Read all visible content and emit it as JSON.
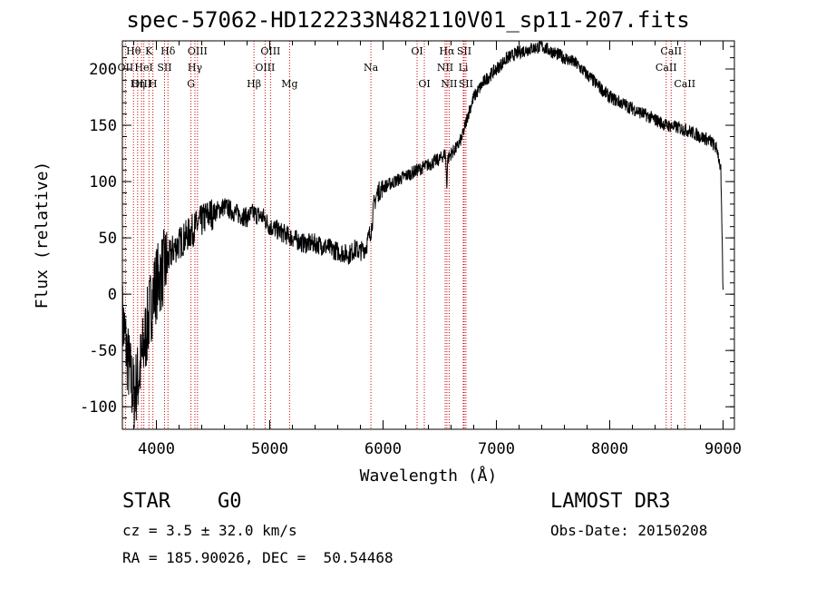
{
  "title": "spec-57062-HD122233N482110V01_sp11-207.fits",
  "info": {
    "object_type": "STAR",
    "subclass": "G0",
    "survey": "LAMOST DR3",
    "cz": "cz = 3.5 ± 32.0 km/s",
    "obs_date": "Obs-Date: 20150208",
    "coords": "RA = 185.90026, DEC =  50.54468"
  },
  "colors": {
    "line": "#000000",
    "marker": "#cc0000",
    "axis": "#000000",
    "background": "#ffffff"
  },
  "chart_data": {
    "type": "line",
    "title": "spec-57062-HD122233N482110V01_sp11-207.fits",
    "xlabel": "Wavelength (Å)",
    "ylabel": "Flux (relative)",
    "xlim": [
      3700,
      9100
    ],
    "ylim": [
      -120,
      225
    ],
    "xticks": [
      4000,
      5000,
      6000,
      7000,
      8000,
      9000
    ],
    "yticks": [
      -100,
      -50,
      0,
      50,
      100,
      150,
      200
    ],
    "series": [
      {
        "name": "flux",
        "x": [
          3700,
          3750,
          3800,
          3850,
          3900,
          3950,
          4000,
          4050,
          4100,
          4150,
          4200,
          4250,
          4300,
          4350,
          4400,
          4450,
          4500,
          4550,
          4600,
          4650,
          4700,
          4750,
          4800,
          4850,
          4900,
          4950,
          5000,
          5050,
          5100,
          5200,
          5300,
          5400,
          5500,
          5600,
          5700,
          5750,
          5800,
          5850,
          5900,
          5920,
          5950,
          6000,
          6100,
          6200,
          6300,
          6400,
          6500,
          6550,
          6563,
          6570,
          6600,
          6650,
          6700,
          6750,
          6800,
          6900,
          7000,
          7100,
          7200,
          7300,
          7400,
          7500,
          7600,
          7700,
          7800,
          7900,
          8000,
          8100,
          8200,
          8300,
          8400,
          8500,
          8600,
          8700,
          8800,
          8850,
          8900,
          8950,
          8980,
          9000
        ],
        "y": [
          -20,
          -60,
          -90,
          -70,
          -40,
          -10,
          10,
          20,
          30,
          40,
          45,
          50,
          55,
          60,
          65,
          70,
          72,
          75,
          78,
          75,
          72,
          70,
          68,
          72,
          70,
          68,
          60,
          58,
          55,
          50,
          45,
          45,
          42,
          38,
          35,
          40,
          38,
          42,
          60,
          80,
          90,
          95,
          100,
          105,
          110,
          115,
          120,
          125,
          95,
          120,
          125,
          130,
          140,
          160,
          175,
          190,
          200,
          210,
          215,
          218,
          220,
          215,
          210,
          205,
          195,
          185,
          175,
          170,
          165,
          160,
          155,
          150,
          148,
          145,
          140,
          138,
          135,
          128,
          110,
          0
        ]
      }
    ],
    "lines": [
      {
        "name": "Hθ",
        "x": 3798,
        "label_row": 0
      },
      {
        "name": "OII",
        "x": 3727,
        "label_row": 1
      },
      {
        "name": "OIII",
        "x": 3869,
        "label_row": 2
      },
      {
        "name": "K",
        "x": 3934,
        "label_row": 0
      },
      {
        "name": "HeI",
        "x": 3889,
        "label_row": 1
      },
      {
        "name": "Hη",
        "x": 3835,
        "label_row": 2
      },
      {
        "name": "SII",
        "x": 4072,
        "label_row": 1
      },
      {
        "name": "H",
        "x": 3969,
        "label_row": 2
      },
      {
        "name": "Hδ",
        "x": 4102,
        "label_row": 0
      },
      {
        "name": "OIII",
        "x": 4363,
        "label_row": 0
      },
      {
        "name": "Hγ",
        "x": 4340,
        "label_row": 1
      },
      {
        "name": "G",
        "x": 4305,
        "label_row": 2
      },
      {
        "name": "OIII",
        "x": 5007,
        "label_row": 0
      },
      {
        "name": "OIII",
        "x": 4959,
        "label_row": 1
      },
      {
        "name": "Hβ",
        "x": 4861,
        "label_row": 2
      },
      {
        "name": "Mg",
        "x": 5175,
        "label_row": 2
      },
      {
        "name": "Na",
        "x": 5893,
        "label_row": 1
      },
      {
        "name": "OI",
        "x": 6300,
        "label_row": 0
      },
      {
        "name": "OI",
        "x": 6364,
        "label_row": 2
      },
      {
        "name": "Hα",
        "x": 6563,
        "label_row": 0
      },
      {
        "name": "SII",
        "x": 6716,
        "label_row": 0
      },
      {
        "name": "NII",
        "x": 6548,
        "label_row": 1
      },
      {
        "name": "Li",
        "x": 6708,
        "label_row": 1
      },
      {
        "name": "NII",
        "x": 6583,
        "label_row": 2
      },
      {
        "name": "SII",
        "x": 6731,
        "label_row": 2
      },
      {
        "name": "CaII",
        "x": 8542,
        "label_row": 0
      },
      {
        "name": "CaII",
        "x": 8498,
        "label_row": 1
      },
      {
        "name": "CaII",
        "x": 8662,
        "label_row": 2
      }
    ]
  }
}
